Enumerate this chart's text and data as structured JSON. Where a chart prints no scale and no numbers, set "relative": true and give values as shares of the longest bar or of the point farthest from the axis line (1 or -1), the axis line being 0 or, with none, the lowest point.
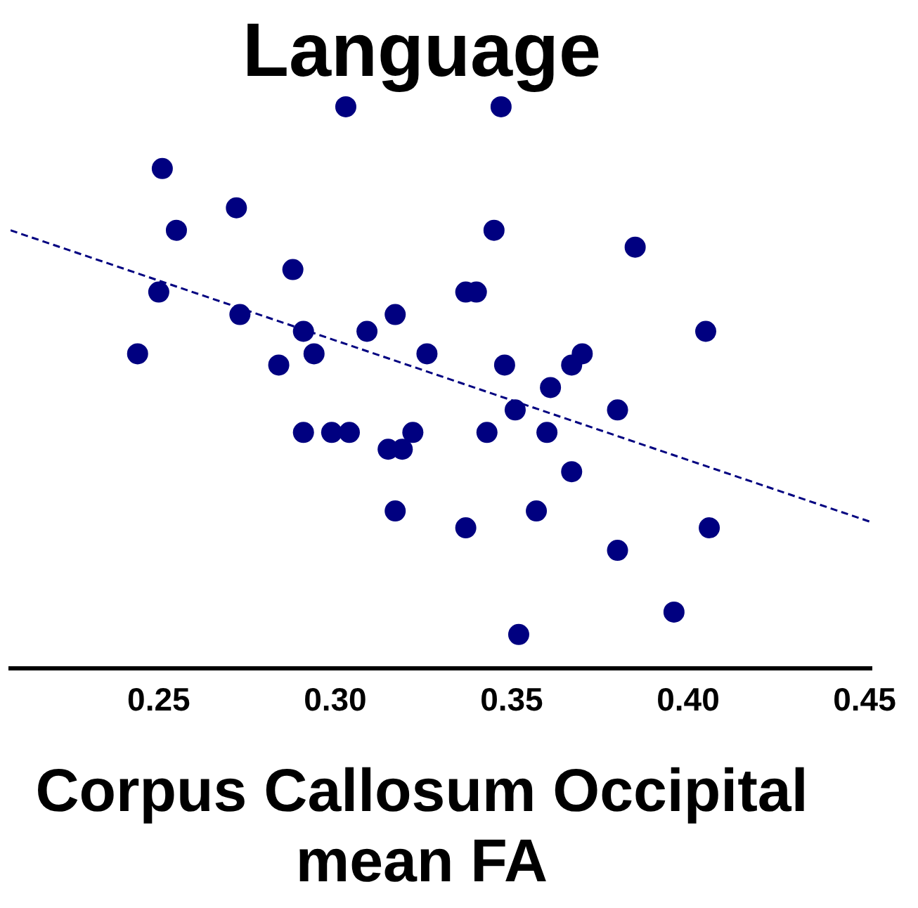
{
  "chart_data": {
    "type": "scatter",
    "title": "Language",
    "xlabel": "Corpus Callosum Occipital mean FA",
    "relative": true,
    "xlim": [
      0.208,
      0.452
    ],
    "xticks": [
      0.25,
      {
        "value": 0.3,
        "label": "0.30"
      },
      0.35,
      {
        "value": 0.4,
        "label": "0.40"
      },
      0.45
    ],
    "grid": false,
    "legend": false,
    "tick_labels": "x",
    "marker": "circle",
    "series": [
      {
        "color": "#000080",
        "x": [
          0.251,
          0.255,
          0.25,
          0.244,
          0.272,
          0.273,
          0.288,
          0.291,
          0.294,
          0.284,
          0.291,
          0.299,
          0.304,
          0.303,
          0.309,
          0.317,
          0.315,
          0.319,
          0.322,
          0.317,
          0.326,
          0.337,
          0.337,
          0.34,
          0.345,
          0.347,
          0.348,
          0.343,
          0.351,
          0.352,
          0.357,
          0.36,
          0.361,
          0.367,
          0.367,
          0.37,
          0.38,
          0.38,
          0.385,
          0.396,
          0.405,
          0.406
        ],
        "values": [
          0.89,
          0.78,
          0.67,
          0.56,
          0.82,
          0.63,
          0.71,
          0.6,
          0.56,
          0.54,
          0.42,
          0.42,
          0.42,
          1,
          0.6,
          0.63,
          0.39,
          0.39,
          0.42,
          0.28,
          0.56,
          0.25,
          0.67,
          0.67,
          0.78,
          1,
          0.54,
          0.42,
          0.46,
          0.06,
          0.28,
          0.42,
          0.5,
          0.35,
          0.54,
          0.56,
          0.46,
          0.21,
          0.75,
          0.1,
          0.6,
          0.25
        ]
      },
      {
        "type": "line",
        "color": "#000080",
        "line_style": "dashed",
        "marker": "none",
        "x": [
          0.208,
          0.452
        ],
        "values": [
          0.78,
          0.26
        ]
      }
    ]
  }
}
